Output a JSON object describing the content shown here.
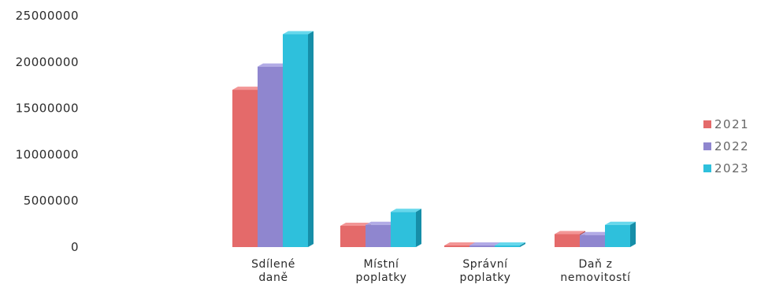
{
  "chart_data": {
    "type": "bar",
    "categories": [
      [
        "Sdílené",
        "daně"
      ],
      [
        "Místní",
        "poplatky"
      ],
      [
        "Správní",
        "poplatky"
      ],
      [
        "Daň z",
        "nemovitostí"
      ]
    ],
    "series": [
      {
        "name": "2021",
        "values": [
          17000000,
          2300000,
          50000,
          1400000
        ]
      },
      {
        "name": "2022",
        "values": [
          19500000,
          2400000,
          30000,
          1300000
        ]
      },
      {
        "name": "2023",
        "values": [
          23000000,
          3800000,
          20000,
          2400000
        ]
      }
    ],
    "ylim": [
      0,
      25000000
    ],
    "yticks": [
      "25000000",
      "20000000",
      "15000000",
      "10000000",
      "5000000",
      "0"
    ],
    "legend_position": "right",
    "grid": false,
    "colors": {
      "2021": {
        "front": "#e46a6a",
        "side": "#b04646",
        "top": "#f39696"
      },
      "2022": {
        "front": "#8f86cf",
        "side": "#6a62a8",
        "top": "#b2abe6"
      },
      "2023": {
        "front": "#2ec0dc",
        "side": "#168ea8",
        "top": "#67d8ec"
      }
    }
  }
}
